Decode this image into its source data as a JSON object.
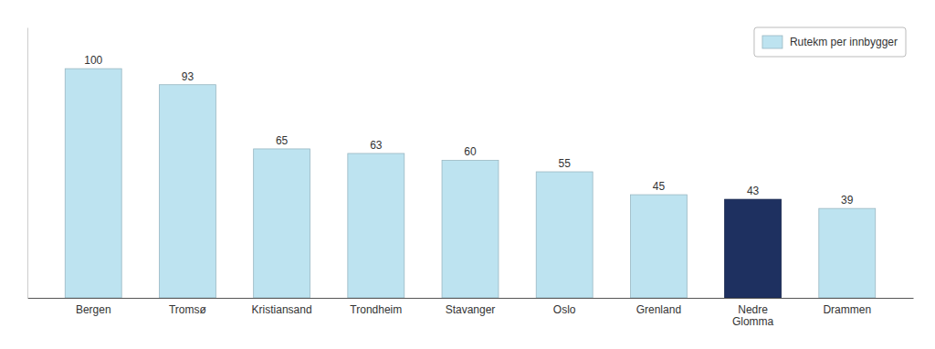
{
  "chart_data": {
    "type": "bar",
    "categories": [
      "Bergen",
      "Tromsø",
      "Kristiansand",
      "Trondheim",
      "Stavanger",
      "Oslo",
      "Grenland",
      "Nedre\nGlomma",
      "Drammen"
    ],
    "series": [
      {
        "name": "Rutekm per innbygger",
        "values": [
          100,
          93,
          65,
          63,
          60,
          55,
          45,
          43,
          39
        ],
        "colors": [
          "#bde3f0",
          "#bde3f0",
          "#bde3f0",
          "#bde3f0",
          "#bde3f0",
          "#bde3f0",
          "#bde3f0",
          "#1e3060",
          "#bde3f0"
        ]
      }
    ],
    "ylim": [
      0,
      118
    ],
    "data_labels": true,
    "tick_labels": "x",
    "grid": false,
    "legend": "upper right"
  }
}
